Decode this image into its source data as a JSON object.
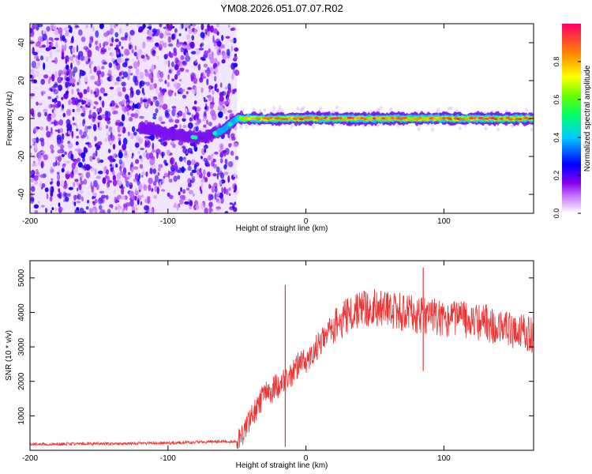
{
  "figure_title": "YM08.2026.051.07.07.R02",
  "chart_data": [
    {
      "type": "heatmap",
      "title": "YM08.2026.051.07.07.R02",
      "xlabel": "Height of straight line (km)",
      "ylabel": "Frequency (Hz)",
      "xlim": [
        -200,
        165
      ],
      "ylim": [
        -50,
        50
      ],
      "xticks": [
        -200,
        -100,
        0,
        100
      ],
      "xtick_labels": [
        "-200",
        "-100",
        "0",
        "100"
      ],
      "yticks": [
        -40,
        -20,
        0,
        20,
        40
      ],
      "ytick_labels": [
        "-40",
        "-20",
        "0",
        "20",
        "40"
      ],
      "colorbar": {
        "label": "Normalized spectral amplitude",
        "range": [
          0,
          1
        ],
        "ticks": [
          0.0,
          0.2,
          0.4,
          0.6,
          0.8
        ],
        "tick_labels": [
          "0.0",
          "0.2",
          "0.4",
          "0.6",
          "0.8"
        ]
      },
      "features": {
        "noise_region_km": [
          -200,
          -50
        ],
        "noise_amplitude": 0.2,
        "tone_track": {
          "x": [
            -120,
            -110,
            -100,
            -90,
            -80,
            -70,
            -60,
            -55,
            -50,
            -40,
            0,
            50,
            100,
            165
          ],
          "freq_hz": [
            -5,
            -6,
            -8,
            -9,
            -10,
            -9,
            -6,
            -3,
            0,
            0,
            0,
            0,
            0,
            0
          ],
          "amplitude": [
            0.15,
            0.2,
            0.2,
            0.3,
            0.3,
            0.25,
            0.35,
            0.45,
            0.6,
            0.85,
            0.9,
            0.9,
            0.9,
            0.9
          ]
        }
      }
    },
    {
      "type": "line",
      "xlabel": "Height of straight line (km)",
      "ylabel": "SNR (10 * v/v)",
      "xlim": [
        -200,
        165
      ],
      "ylim": [
        0,
        5500
      ],
      "xticks": [
        -200,
        -100,
        0,
        100
      ],
      "xtick_labels": [
        "-200",
        "-100",
        "0",
        "100"
      ],
      "yticks": [
        1000,
        2000,
        3000,
        4000,
        5000
      ],
      "ytick_labels": [
        "1000",
        "2000",
        "3000",
        "4000",
        "5000"
      ],
      "series": [
        {
          "name": "SNR",
          "color": "#ee3333",
          "x": [
            -200,
            -150,
            -100,
            -60,
            -50,
            -45,
            -40,
            -35,
            -30,
            -25,
            -20,
            -15,
            -10,
            -5,
            0,
            10,
            20,
            30,
            40,
            50,
            60,
            70,
            80,
            90,
            100,
            110,
            120,
            130,
            140,
            150,
            160,
            165
          ],
          "y": [
            180,
            190,
            210,
            260,
            260,
            500,
            900,
            1300,
            1600,
            1700,
            1900,
            2000,
            2200,
            2500,
            2600,
            3100,
            3600,
            3900,
            4100,
            4150,
            4100,
            4000,
            3950,
            3900,
            3850,
            3800,
            3750,
            3700,
            3600,
            3500,
            3400,
            3300
          ]
        }
      ],
      "annotations": [
        {
          "x": -15,
          "y": 4800,
          "note": "spike"
        },
        {
          "x": 85,
          "y": 5300,
          "note": "spike"
        },
        {
          "x": 85,
          "y": 2300,
          "note": "dip"
        }
      ]
    }
  ]
}
